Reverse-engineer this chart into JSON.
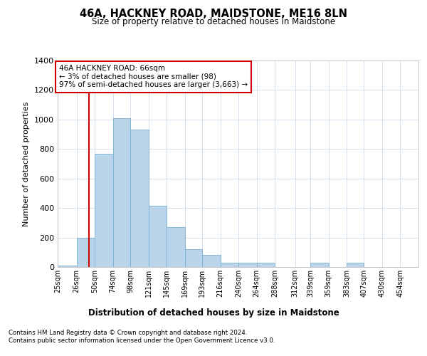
{
  "title": "46A, HACKNEY ROAD, MAIDSTONE, ME16 8LN",
  "subtitle": "Size of property relative to detached houses in Maidstone",
  "xlabel": "Distribution of detached houses by size in Maidstone",
  "ylabel": "Number of detached properties",
  "bar_lefts": [
    25,
    50,
    74,
    98,
    121,
    145,
    169,
    193,
    216,
    240,
    264,
    288,
    312,
    339,
    359,
    383,
    407,
    430,
    454,
    478
  ],
  "bar_widths": [
    25,
    24,
    24,
    23,
    24,
    24,
    24,
    23,
    24,
    24,
    24,
    24,
    27,
    20,
    24,
    24,
    23,
    24,
    24,
    24
  ],
  "bar_heights": [
    10,
    200,
    770,
    1010,
    930,
    415,
    270,
    120,
    80,
    30,
    30,
    30,
    0,
    0,
    30,
    0,
    30,
    0,
    0,
    0
  ],
  "tick_positions": [
    25,
    50,
    74,
    98,
    121,
    145,
    169,
    193,
    216,
    240,
    264,
    288,
    312,
    339,
    359,
    383,
    407,
    430,
    454,
    478
  ],
  "tick_labels": [
    "25sqm",
    "26sqm",
    "50sqm",
    "74sqm",
    "98sqm",
    "121sqm",
    "145sqm",
    "169sqm",
    "193sqm",
    "216sqm",
    "240sqm",
    "264sqm",
    "288sqm",
    "312sqm",
    "339sqm",
    "359sqm",
    "383sqm",
    "407sqm",
    "430sqm",
    "454sqm"
  ],
  "bar_color": "#bad4ea",
  "bar_edge_color": "#7aaed0",
  "property_line_x": 66,
  "property_line_color": "#cc0000",
  "annotation_text": "46A HACKNEY ROAD: 66sqm\n← 3% of detached houses are smaller (98)\n97% of semi-detached houses are larger (3,663) →",
  "annotation_box_color": "#cc0000",
  "ylim": [
    0,
    1400
  ],
  "yticks": [
    0,
    200,
    400,
    600,
    800,
    1000,
    1200,
    1400
  ],
  "xlim": [
    25,
    502
  ],
  "background_color": "#ffffff",
  "grid_color": "#d0dcea",
  "footer_line1": "Contains HM Land Registry data © Crown copyright and database right 2024.",
  "footer_line2": "Contains public sector information licensed under the Open Government Licence v3.0."
}
